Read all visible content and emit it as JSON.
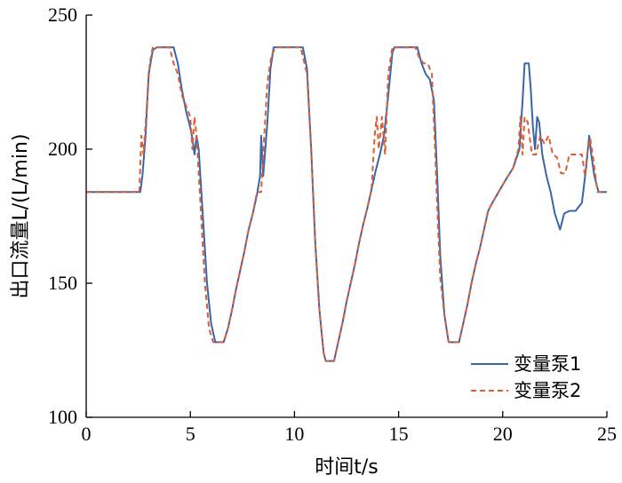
{
  "chart_data": {
    "type": "line",
    "title": "",
    "xlabel": "时间t/s",
    "ylabel": "出口流量L/(L/min)",
    "xlim": [
      0,
      25
    ],
    "ylim": [
      100,
      250
    ],
    "xticks": [
      0,
      5,
      10,
      15,
      20,
      25
    ],
    "yticks": [
      100,
      150,
      200,
      250
    ],
    "grid": false,
    "legend_position": "bottom-right",
    "series": [
      {
        "name": "变量泵1",
        "color": "#3a66a8",
        "dash": "solid",
        "points": [
          [
            0,
            184
          ],
          [
            2.6,
            184
          ],
          [
            2.7,
            190
          ],
          [
            2.85,
            205
          ],
          [
            3.0,
            228
          ],
          [
            3.2,
            237
          ],
          [
            3.4,
            238
          ],
          [
            4.2,
            238
          ],
          [
            4.4,
            232
          ],
          [
            4.6,
            222
          ],
          [
            4.8,
            214
          ],
          [
            5.0,
            208
          ],
          [
            5.1,
            204
          ],
          [
            5.2,
            198
          ],
          [
            5.3,
            205
          ],
          [
            5.4,
            200
          ],
          [
            5.6,
            175
          ],
          [
            5.8,
            150
          ],
          [
            6.0,
            135
          ],
          [
            6.2,
            128
          ],
          [
            6.6,
            128
          ],
          [
            6.8,
            133
          ],
          [
            7.0,
            140
          ],
          [
            7.2,
            148
          ],
          [
            7.4,
            155
          ],
          [
            7.6,
            162
          ],
          [
            7.8,
            170
          ],
          [
            8.0,
            176
          ],
          [
            8.2,
            183
          ],
          [
            8.35,
            190
          ],
          [
            8.4,
            205
          ],
          [
            8.5,
            190
          ],
          [
            8.7,
            210
          ],
          [
            8.85,
            230
          ],
          [
            9.0,
            238
          ],
          [
            10.4,
            238
          ],
          [
            10.6,
            230
          ],
          [
            10.8,
            200
          ],
          [
            11.0,
            165
          ],
          [
            11.2,
            140
          ],
          [
            11.4,
            124
          ],
          [
            11.5,
            121
          ],
          [
            11.9,
            121
          ],
          [
            12.1,
            128
          ],
          [
            12.3,
            135
          ],
          [
            12.5,
            143
          ],
          [
            12.7,
            150
          ],
          [
            12.9,
            157
          ],
          [
            13.1,
            165
          ],
          [
            13.3,
            172
          ],
          [
            13.5,
            178
          ],
          [
            13.7,
            185
          ],
          [
            13.9,
            192
          ],
          [
            14.1,
            198
          ],
          [
            14.3,
            205
          ],
          [
            14.5,
            220
          ],
          [
            14.7,
            236
          ],
          [
            14.8,
            238
          ],
          [
            15.9,
            238
          ],
          [
            16.1,
            232
          ],
          [
            16.3,
            228
          ],
          [
            16.5,
            226
          ],
          [
            16.7,
            218
          ],
          [
            16.85,
            190
          ],
          [
            17.0,
            160
          ],
          [
            17.2,
            138
          ],
          [
            17.4,
            128
          ],
          [
            17.9,
            128
          ],
          [
            18.1,
            135
          ],
          [
            18.3,
            142
          ],
          [
            18.5,
            150
          ],
          [
            18.7,
            157
          ],
          [
            18.9,
            163
          ],
          [
            19.1,
            170
          ],
          [
            19.3,
            177
          ],
          [
            19.5,
            180
          ],
          [
            19.8,
            184
          ],
          [
            20.1,
            188
          ],
          [
            20.5,
            193
          ],
          [
            20.8,
            200
          ],
          [
            20.95,
            218
          ],
          [
            21.05,
            232
          ],
          [
            21.25,
            232
          ],
          [
            21.35,
            222
          ],
          [
            21.45,
            208
          ],
          [
            21.55,
            200
          ],
          [
            21.65,
            212
          ],
          [
            21.75,
            210
          ],
          [
            21.9,
            198
          ],
          [
            22.1,
            190
          ],
          [
            22.3,
            184
          ],
          [
            22.5,
            176
          ],
          [
            22.75,
            170
          ],
          [
            22.95,
            176
          ],
          [
            23.2,
            177
          ],
          [
            23.5,
            177
          ],
          [
            23.8,
            180
          ],
          [
            24.0,
            193
          ],
          [
            24.15,
            205
          ],
          [
            24.25,
            198
          ],
          [
            24.4,
            190
          ],
          [
            24.6,
            184
          ],
          [
            25,
            184
          ]
        ]
      },
      {
        "name": "变量泵2",
        "color": "#d95f36",
        "dash": "dashed",
        "points": [
          [
            0,
            184
          ],
          [
            2.55,
            184
          ],
          [
            2.65,
            205
          ],
          [
            2.75,
            198
          ],
          [
            2.9,
            215
          ],
          [
            3.05,
            232
          ],
          [
            3.2,
            238
          ],
          [
            4.0,
            238
          ],
          [
            4.2,
            232
          ],
          [
            4.4,
            228
          ],
          [
            4.6,
            220
          ],
          [
            4.8,
            216
          ],
          [
            5.0,
            212
          ],
          [
            5.1,
            200
          ],
          [
            5.2,
            212
          ],
          [
            5.3,
            205
          ],
          [
            5.5,
            178
          ],
          [
            5.7,
            150
          ],
          [
            5.9,
            133
          ],
          [
            6.1,
            128
          ],
          [
            6.6,
            128
          ],
          [
            6.8,
            133
          ],
          [
            7.0,
            140
          ],
          [
            7.2,
            148
          ],
          [
            7.4,
            155
          ],
          [
            7.6,
            162
          ],
          [
            7.8,
            170
          ],
          [
            8.0,
            176
          ],
          [
            8.2,
            184
          ],
          [
            8.4,
            184
          ],
          [
            8.55,
            205
          ],
          [
            8.7,
            225
          ],
          [
            8.9,
            235
          ],
          [
            9.1,
            238
          ],
          [
            10.3,
            238
          ],
          [
            10.45,
            233
          ],
          [
            10.6,
            228
          ],
          [
            10.8,
            200
          ],
          [
            11.0,
            165
          ],
          [
            11.2,
            140
          ],
          [
            11.4,
            124
          ],
          [
            11.5,
            121
          ],
          [
            11.9,
            121
          ],
          [
            12.1,
            128
          ],
          [
            12.3,
            135
          ],
          [
            12.5,
            143
          ],
          [
            12.7,
            150
          ],
          [
            12.9,
            157
          ],
          [
            13.1,
            165
          ],
          [
            13.3,
            172
          ],
          [
            13.5,
            178
          ],
          [
            13.7,
            185
          ],
          [
            13.85,
            205
          ],
          [
            13.95,
            212
          ],
          [
            14.05,
            200
          ],
          [
            14.2,
            212
          ],
          [
            14.35,
            198
          ],
          [
            14.5,
            228
          ],
          [
            14.7,
            238
          ],
          [
            15.8,
            238
          ],
          [
            16.0,
            234
          ],
          [
            16.2,
            232
          ],
          [
            16.4,
            232
          ],
          [
            16.6,
            228
          ],
          [
            16.75,
            200
          ],
          [
            16.9,
            170
          ],
          [
            17.0,
            152
          ],
          [
            17.2,
            138
          ],
          [
            17.4,
            128
          ],
          [
            17.9,
            128
          ],
          [
            18.1,
            135
          ],
          [
            18.3,
            142
          ],
          [
            18.5,
            150
          ],
          [
            18.7,
            157
          ],
          [
            18.9,
            163
          ],
          [
            19.1,
            170
          ],
          [
            19.3,
            177
          ],
          [
            19.5,
            180
          ],
          [
            19.8,
            184
          ],
          [
            20.1,
            188
          ],
          [
            20.5,
            193
          ],
          [
            20.75,
            200
          ],
          [
            20.85,
            212
          ],
          [
            20.95,
            198
          ],
          [
            21.05,
            212
          ],
          [
            21.2,
            210
          ],
          [
            21.4,
            198
          ],
          [
            21.6,
            198
          ],
          [
            21.8,
            205
          ],
          [
            22.0,
            202
          ],
          [
            22.2,
            205
          ],
          [
            22.4,
            198
          ],
          [
            22.6,
            197
          ],
          [
            22.8,
            191
          ],
          [
            23.0,
            191
          ],
          [
            23.2,
            198
          ],
          [
            23.5,
            198
          ],
          [
            23.8,
            198
          ],
          [
            23.95,
            190
          ],
          [
            24.05,
            198
          ],
          [
            24.2,
            204
          ],
          [
            24.35,
            196
          ],
          [
            24.55,
            184
          ],
          [
            25,
            184
          ]
        ]
      }
    ]
  }
}
